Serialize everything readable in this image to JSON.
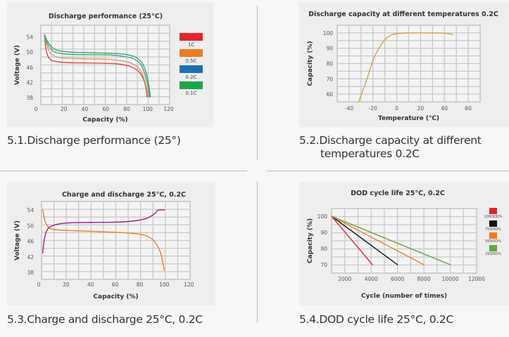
{
  "captions": [
    {
      "lines": [
        "5.1.Discharge performance (25°)"
      ]
    },
    {
      "lines": [
        "5.2.Discharge capacity at different",
        "temperatures 0.2C"
      ]
    },
    {
      "lines": [
        "5.3.Charge and discharge 25°C, 0.2C"
      ]
    },
    {
      "lines": [
        "5.4.DOD cycle life 25°C, 0.2C"
      ]
    }
  ],
  "chart_data": [
    {
      "type": "line",
      "title": "Discharge performance (25°C)",
      "xlabel": "Capacity (%)",
      "ylabel": "Voltage (V)",
      "xticks": [
        0,
        20,
        40,
        60,
        80,
        100,
        120
      ],
      "yticks": [
        54,
        50,
        46,
        42,
        38
      ],
      "xlim": [
        -2,
        121
      ],
      "ylim": [
        36.2,
        57
      ],
      "grid": true,
      "legend": {
        "position": "right",
        "entries": [
          {
            "label": "1C",
            "color": "#e3262c"
          },
          {
            "label": "0.5C",
            "color": "#ee7d22"
          },
          {
            "label": "0.2C",
            "color": "#1e6fb5"
          },
          {
            "label": "0.1C",
            "color": "#1aa64b"
          }
        ]
      },
      "series": [
        {
          "name": "1C",
          "color": "#d9474b",
          "points": [
            [
              1.5,
              54.5
            ],
            [
              3,
              50.5
            ],
            [
              6,
              48.3
            ],
            [
              12,
              47.5
            ],
            [
              25,
              47.2
            ],
            [
              50,
              47.1
            ],
            [
              70,
              46.9
            ],
            [
              82,
              46.3
            ],
            [
              90,
              45.2
            ],
            [
              95,
              43.5
            ],
            [
              98,
              41
            ],
            [
              99.5,
              38.2
            ]
          ]
        },
        {
          "name": "0.5C",
          "color": "#d9a35a",
          "points": [
            [
              1.5,
              54.5
            ],
            [
              4,
              51.5
            ],
            [
              8,
              49.5
            ],
            [
              15,
              48.6
            ],
            [
              30,
              48.3
            ],
            [
              60,
              48.1
            ],
            [
              75,
              47.7
            ],
            [
              85,
              47
            ],
            [
              92,
              45.6
            ],
            [
              96,
              43.5
            ],
            [
              99,
              40.5
            ],
            [
              100.5,
              38.2
            ]
          ]
        },
        {
          "name": "0.2C",
          "color": "#3fa0a8",
          "points": [
            [
              1.5,
              54.5
            ],
            [
              4,
              52.3
            ],
            [
              10,
              50.2
            ],
            [
              20,
              49.5
            ],
            [
              40,
              49.3
            ],
            [
              65,
              49.2
            ],
            [
              80,
              48.7
            ],
            [
              88,
              48
            ],
            [
              94,
              46.5
            ],
            [
              98,
              43.5
            ],
            [
              100.5,
              40.5
            ],
            [
              101.5,
              38.2
            ]
          ]
        },
        {
          "name": "0.1C",
          "color": "#3fa260",
          "points": [
            [
              1.5,
              54.5
            ],
            [
              5,
              52.5
            ],
            [
              12,
              50.6
            ],
            [
              25,
              50
            ],
            [
              45,
              49.8
            ],
            [
              70,
              49.6
            ],
            [
              82,
              49.2
            ],
            [
              90,
              48.4
            ],
            [
              96,
              46.5
            ],
            [
              99.5,
              43.5
            ],
            [
              101.5,
              40.5
            ],
            [
              102.5,
              38.2
            ]
          ]
        }
      ]
    },
    {
      "type": "line",
      "title": "Discharge capacity at different temperatures 0.2C",
      "xlabel": "Temperature (℃)",
      "ylabel": "Capacity (%)",
      "xticks": [
        -40,
        -20,
        0,
        20,
        40,
        60
      ],
      "yticks": [
        100,
        90,
        80,
        70,
        60
      ],
      "xlim": [
        -50,
        70
      ],
      "ylim": [
        55,
        105
      ],
      "grid": true,
      "series": [
        {
          "color": "#d2a04e",
          "points": [
            [
              -32,
              55
            ],
            [
              -25,
              70
            ],
            [
              -20,
              82
            ],
            [
              -15,
              90
            ],
            [
              -10,
              95.5
            ],
            [
              -5,
              98.5
            ],
            [
              0,
              99.5
            ],
            [
              10,
              100
            ],
            [
              30,
              100
            ],
            [
              40,
              99.8
            ],
            [
              47,
              99
            ]
          ]
        }
      ]
    },
    {
      "type": "line",
      "title": "Charge and discharge 25°C, 0.2C",
      "xlabel": "Capacity (%)",
      "ylabel": "Voltage (V)",
      "xticks": [
        0,
        20,
        40,
        60,
        80,
        100,
        120
      ],
      "yticks": [
        54,
        50,
        46,
        42,
        38
      ],
      "xlim": [
        0,
        121
      ],
      "ylim": [
        36.2,
        56.2
      ],
      "grid": true,
      "series": [
        {
          "color": "#ec7c2c",
          "points": [
            [
              1,
              54
            ],
            [
              3,
              51
            ],
            [
              6,
              49.5
            ],
            [
              10,
              49
            ],
            [
              20,
              48.8
            ],
            [
              60,
              48.3
            ],
            [
              80,
              47.8
            ],
            [
              88,
              47
            ],
            [
              93,
              45.5
            ],
            [
              97,
              43
            ],
            [
              99,
              40
            ],
            [
              100,
              38.6
            ]
          ]
        },
        {
          "color": "#9b1f77",
          "points": [
            [
              1,
              43
            ],
            [
              2,
              46
            ],
            [
              4,
              48.5
            ],
            [
              7,
              49.7
            ],
            [
              15,
              50.5
            ],
            [
              30,
              50.8
            ],
            [
              60,
              50.9
            ],
            [
              75,
              51.2
            ],
            [
              85,
              51.8
            ],
            [
              90,
              52.6
            ],
            [
              93,
              53.3
            ],
            [
              95,
              54
            ],
            [
              100,
              54
            ]
          ]
        }
      ]
    },
    {
      "type": "line",
      "title": "DOD cycle life 25°C, 0.2C",
      "xlabel": "Cycle (number of times)",
      "ylabel": "Capacity (%)",
      "xticks": [
        2000,
        4000,
        6000,
        8000,
        10000,
        12000
      ],
      "yticks": [
        100,
        90,
        80,
        70
      ],
      "xlim": [
        1000,
        12000
      ],
      "ylim": [
        64.8,
        104.8
      ],
      "grid": true,
      "legend": {
        "position": "right",
        "entries": [
          {
            "label": "100DOD%",
            "color": "#e3262c"
          },
          {
            "label": "75DOD%",
            "color": "#111111"
          },
          {
            "label": "50DOD%",
            "color": "#ee7d22"
          },
          {
            "label": "25DOD%",
            "color": "#5fa83a"
          }
        ]
      },
      "series": [
        {
          "name": "100DOD%",
          "color": "#d42a2a",
          "points": [
            [
              1000,
              100
            ],
            [
              4100,
              70
            ]
          ]
        },
        {
          "name": "75DOD%",
          "color": "#111111",
          "points": [
            [
              1000,
              100
            ],
            [
              6000,
              70
            ]
          ]
        },
        {
          "name": "50DOD%",
          "color": "#e9802a",
          "points": [
            [
              1000,
              100
            ],
            [
              8000,
              70
            ]
          ]
        },
        {
          "name": "25DOD%",
          "color": "#6aa43a",
          "points": [
            [
              1000,
              100
            ],
            [
              10000,
              70
            ]
          ]
        }
      ]
    }
  ]
}
